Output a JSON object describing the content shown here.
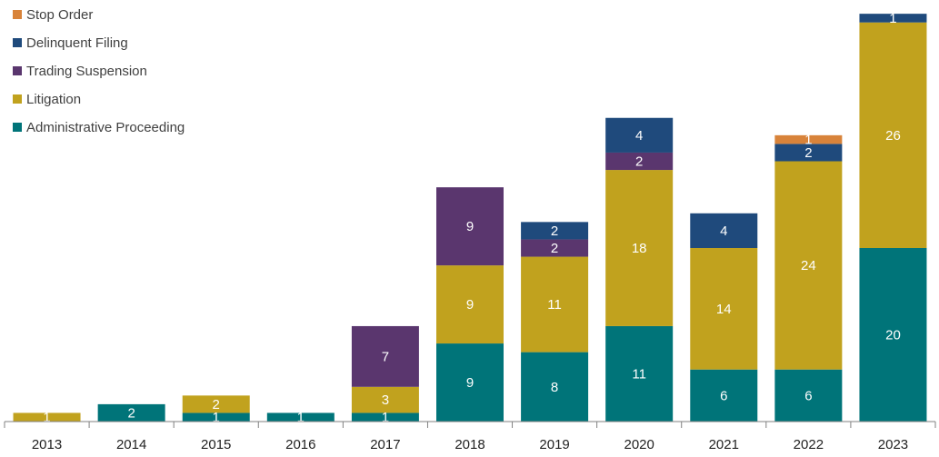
{
  "chart_data": {
    "type": "bar",
    "stacked": true,
    "title": "",
    "xlabel": "",
    "ylabel": "",
    "ylim": [
      0,
      50
    ],
    "grid": false,
    "legend_position": "top-left",
    "categories": [
      "2013",
      "2014",
      "2015",
      "2016",
      "2017",
      "2018",
      "2019",
      "2020",
      "2021",
      "2022",
      "2023"
    ],
    "series": [
      {
        "name": "Administrative Proceeding",
        "color": "#007479",
        "values": [
          0,
          2,
          1,
          1,
          1,
          9,
          8,
          11,
          6,
          6,
          20
        ]
      },
      {
        "name": "Litigation",
        "color": "#C1A21E",
        "values": [
          1,
          0,
          2,
          0,
          3,
          9,
          11,
          18,
          14,
          24,
          26
        ]
      },
      {
        "name": "Trading Suspension",
        "color": "#5A366E",
        "values": [
          0,
          0,
          0,
          0,
          7,
          9,
          2,
          2,
          0,
          0,
          0
        ]
      },
      {
        "name": "Delinquent Filing",
        "color": "#1F4A7C",
        "values": [
          0,
          0,
          0,
          0,
          0,
          0,
          2,
          4,
          4,
          2,
          1
        ]
      },
      {
        "name": "Stop Order",
        "color": "#D8833A",
        "values": [
          0,
          0,
          0,
          0,
          0,
          0,
          0,
          0,
          0,
          1,
          0
        ]
      }
    ],
    "legend_order": [
      "Stop Order",
      "Delinquent Filing",
      "Trading Suspension",
      "Litigation",
      "Administrative Proceeding"
    ]
  }
}
